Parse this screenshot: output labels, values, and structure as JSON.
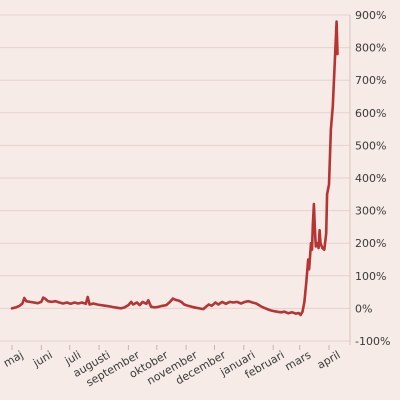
{
  "chart_data": {
    "type": "line",
    "title": "",
    "xlabel": "",
    "ylabel": "",
    "grid": true,
    "legend": "none",
    "colors": {
      "background": "#f6ebe6",
      "gridline": "#e6d2cc",
      "series": "#b53434",
      "text": "#3a3a3a"
    },
    "ylim": [
      -100,
      900
    ],
    "y_ticks": [
      -100,
      0,
      100,
      200,
      300,
      400,
      500,
      600,
      700,
      800,
      900
    ],
    "y_tick_labels": [
      "-100%",
      "0%",
      "100%",
      "200%",
      "300%",
      "400%",
      "500%",
      "600%",
      "700%",
      "800%",
      "900%"
    ],
    "x_tick_labels": [
      "maj",
      "juni",
      "juli",
      "augusti",
      "september",
      "oktober",
      "november",
      "december",
      "januari",
      "februari",
      "mars",
      "april"
    ],
    "x_start": "2020-05-01",
    "x_end": "2021-04-20",
    "series": [
      {
        "color": "#b53434",
        "points": [
          [
            "2020-05-01",
            0
          ],
          [
            "2020-05-05",
            3
          ],
          [
            "2020-05-09",
            8
          ],
          [
            "2020-05-12",
            15
          ],
          [
            "2020-05-14",
            32
          ],
          [
            "2020-05-16",
            22
          ],
          [
            "2020-05-20",
            20
          ],
          [
            "2020-05-24",
            18
          ],
          [
            "2020-05-28",
            16
          ],
          [
            "2020-06-01",
            20
          ],
          [
            "2020-06-03",
            33
          ],
          [
            "2020-06-05",
            30
          ],
          [
            "2020-06-08",
            22
          ],
          [
            "2020-06-12",
            20
          ],
          [
            "2020-06-16",
            22
          ],
          [
            "2020-06-20",
            18
          ],
          [
            "2020-06-24",
            15
          ],
          [
            "2020-06-28",
            18
          ],
          [
            "2020-07-02",
            14
          ],
          [
            "2020-07-06",
            18
          ],
          [
            "2020-07-10",
            15
          ],
          [
            "2020-07-14",
            18
          ],
          [
            "2020-07-18",
            14
          ],
          [
            "2020-07-20",
            35
          ],
          [
            "2020-07-22",
            12
          ],
          [
            "2020-07-26",
            15
          ],
          [
            "2020-07-30",
            12
          ],
          [
            "2020-08-03",
            10
          ],
          [
            "2020-08-08",
            8
          ],
          [
            "2020-08-12",
            6
          ],
          [
            "2020-08-16",
            4
          ],
          [
            "2020-08-20",
            2
          ],
          [
            "2020-08-24",
            0
          ],
          [
            "2020-08-28",
            3
          ],
          [
            "2020-09-01",
            10
          ],
          [
            "2020-09-04",
            20
          ],
          [
            "2020-09-06",
            12
          ],
          [
            "2020-09-10",
            18
          ],
          [
            "2020-09-13",
            10
          ],
          [
            "2020-09-16",
            20
          ],
          [
            "2020-09-20",
            14
          ],
          [
            "2020-09-22",
            25
          ],
          [
            "2020-09-25",
            5
          ],
          [
            "2020-09-29",
            3
          ],
          [
            "2020-10-03",
            5
          ],
          [
            "2020-10-07",
            8
          ],
          [
            "2020-10-11",
            10
          ],
          [
            "2020-10-15",
            20
          ],
          [
            "2020-10-18",
            30
          ],
          [
            "2020-10-21",
            26
          ],
          [
            "2020-10-24",
            24
          ],
          [
            "2020-10-27",
            20
          ],
          [
            "2020-10-30",
            12
          ],
          [
            "2020-11-03",
            8
          ],
          [
            "2020-11-07",
            5
          ],
          [
            "2020-11-11",
            2
          ],
          [
            "2020-11-15",
            0
          ],
          [
            "2020-11-19",
            -2
          ],
          [
            "2020-11-22",
            5
          ],
          [
            "2020-11-25",
            12
          ],
          [
            "2020-11-28",
            8
          ],
          [
            "2020-12-02",
            18
          ],
          [
            "2020-12-05",
            12
          ],
          [
            "2020-12-09",
            20
          ],
          [
            "2020-12-13",
            14
          ],
          [
            "2020-12-17",
            20
          ],
          [
            "2020-12-21",
            18
          ],
          [
            "2020-12-25",
            20
          ],
          [
            "2020-12-29",
            15
          ],
          [
            "2021-01-02",
            20
          ],
          [
            "2021-01-06",
            22
          ],
          [
            "2021-01-10",
            18
          ],
          [
            "2021-01-14",
            15
          ],
          [
            "2021-01-17",
            10
          ],
          [
            "2021-01-20",
            5
          ],
          [
            "2021-01-24",
            0
          ],
          [
            "2021-01-28",
            -5
          ],
          [
            "2021-02-01",
            -8
          ],
          [
            "2021-02-05",
            -10
          ],
          [
            "2021-02-09",
            -12
          ],
          [
            "2021-02-13",
            -10
          ],
          [
            "2021-02-17",
            -15
          ],
          [
            "2021-02-21",
            -12
          ],
          [
            "2021-02-25",
            -16
          ],
          [
            "2021-02-28",
            -14
          ],
          [
            "2021-03-02",
            -20
          ],
          [
            "2021-03-04",
            -10
          ],
          [
            "2021-03-06",
            20
          ],
          [
            "2021-03-08",
            80
          ],
          [
            "2021-03-10",
            150
          ],
          [
            "2021-03-11",
            120
          ],
          [
            "2021-03-13",
            200
          ],
          [
            "2021-03-14",
            180
          ],
          [
            "2021-03-15",
            260
          ],
          [
            "2021-03-16",
            320
          ],
          [
            "2021-03-17",
            250
          ],
          [
            "2021-03-18",
            190
          ],
          [
            "2021-03-20",
            200
          ],
          [
            "2021-03-21",
            185
          ],
          [
            "2021-03-22",
            240
          ],
          [
            "2021-03-23",
            200
          ],
          [
            "2021-03-25",
            185
          ],
          [
            "2021-03-27",
            180
          ],
          [
            "2021-03-29",
            230
          ],
          [
            "2021-03-30",
            350
          ],
          [
            "2021-04-01",
            380
          ],
          [
            "2021-04-03",
            550
          ],
          [
            "2021-04-05",
            620
          ],
          [
            "2021-04-07",
            750
          ],
          [
            "2021-04-09",
            880
          ],
          [
            "2021-04-10",
            780
          ]
        ]
      }
    ]
  }
}
